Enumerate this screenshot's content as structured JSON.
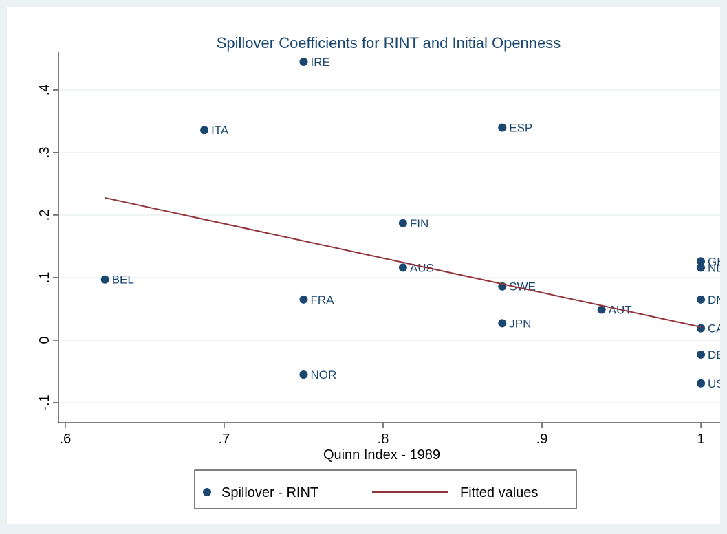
{
  "chart_data": {
    "type": "scatter",
    "title": "Spillover Coefficients for RINT and Initial Openness",
    "x_label": "Quinn Index - 1989",
    "xlim": [
      0.5957,
      1.0121
    ],
    "ylim": [
      -0.1319,
      0.4615
    ],
    "xticks": [
      {
        "value": 0.6,
        "label": ".6"
      },
      {
        "value": 0.7,
        "label": ".7"
      },
      {
        "value": 0.8,
        "label": ".8"
      },
      {
        "value": 0.9,
        "label": ".9"
      },
      1
    ],
    "yticks": [
      {
        "value": -0.1,
        "label": "-.1"
      },
      0,
      {
        "value": 0.1,
        "label": ".1"
      },
      {
        "value": 0.2,
        "label": ".2"
      },
      {
        "value": 0.3,
        "label": ".3"
      },
      {
        "value": 0.4,
        "label": ".4"
      }
    ],
    "grid": true,
    "series": [
      {
        "name": "Spillover - RINT",
        "type": "scatter",
        "color": "#1a476f",
        "point_labels": [
          "IRE",
          "ITA",
          "ESP",
          "FIN",
          "AUS",
          "BEL",
          "FRA",
          "SWE",
          "JPN",
          "AUT",
          "GBR",
          "NLD",
          "DNK",
          "CAN",
          "DEU",
          "USA",
          "NOR"
        ],
        "x": [
          0.75,
          0.6875,
          0.875,
          0.8125,
          0.8125,
          0.625,
          0.75,
          0.875,
          0.875,
          0.9375,
          1,
          1,
          1,
          1,
          1,
          1,
          0.75
        ],
        "values": [
          0.445,
          0.336,
          0.34,
          0.187,
          0.116,
          0.097,
          0.065,
          0.086,
          0.027,
          0.049,
          0.126,
          0.116,
          0.065,
          0.019,
          -0.023,
          -0.069,
          -0.055
        ]
      },
      {
        "name": "Fitted values",
        "type": "line",
        "color": "#90353b",
        "x": [
          0.625,
          1
        ],
        "values": [
          0.2275,
          0.021
        ]
      }
    ]
  }
}
